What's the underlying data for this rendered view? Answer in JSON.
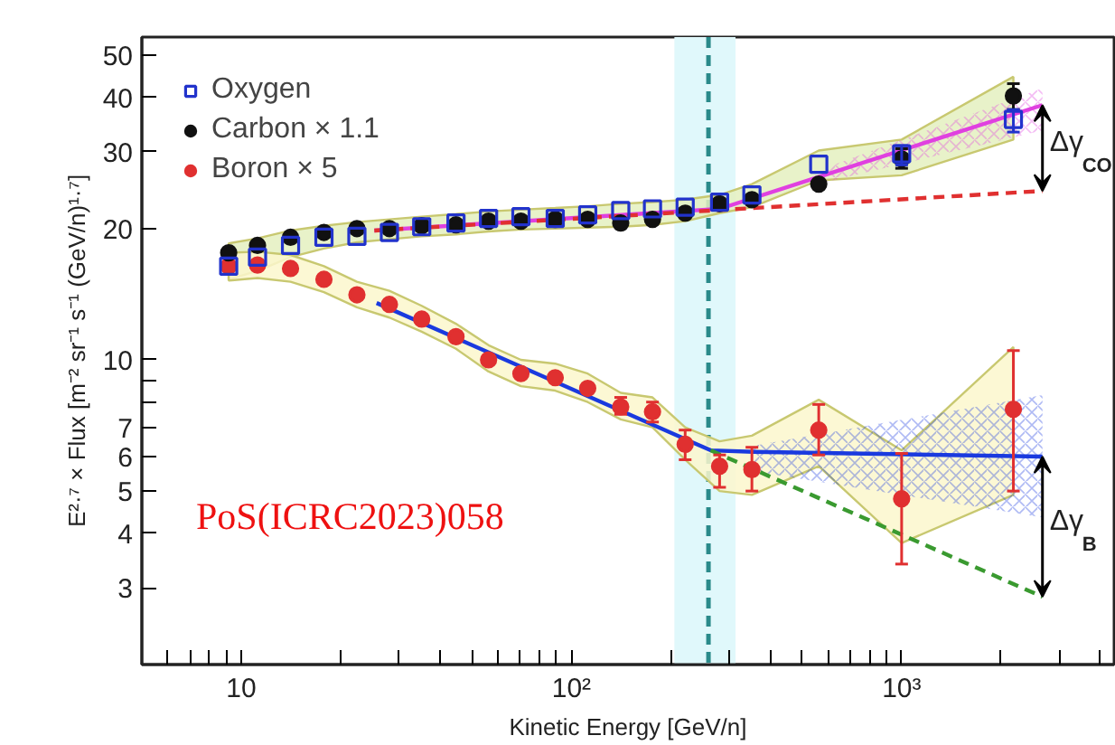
{
  "chart_data": {
    "type": "scatter",
    "xlabel": "Kinetic Energy [GeV/n]",
    "ylabel": "E²·⁷ × Flux [m⁻² sr⁻¹ s⁻¹ (GeV/n)¹·⁷]",
    "log": "xy",
    "legend": "top left",
    "xlim": [
      5,
      4400
    ],
    "ylim": [
      2,
      55
    ],
    "xticks": [
      {
        "value": 6,
        "label": null
      },
      {
        "value": 7,
        "label": null
      },
      {
        "value": 8,
        "label": null
      },
      {
        "value": 9,
        "label": null
      },
      10,
      {
        "value": 20,
        "label": null
      },
      {
        "value": 30,
        "label": null
      },
      {
        "value": 40,
        "label": null
      },
      {
        "value": 50,
        "label": null
      },
      {
        "value": 60,
        "label": null
      },
      {
        "value": 70,
        "label": null
      },
      {
        "value": 80,
        "label": null
      },
      {
        "value": 90,
        "label": null
      },
      {
        "value": 100,
        "label": "10²"
      },
      {
        "value": 200,
        "label": null
      },
      {
        "value": 300,
        "label": null
      },
      {
        "value": 400,
        "label": null
      },
      {
        "value": 500,
        "label": null
      },
      {
        "value": 600,
        "label": null
      },
      {
        "value": 700,
        "label": null
      },
      {
        "value": 800,
        "label": null
      },
      {
        "value": 900,
        "label": null
      },
      {
        "value": 1000,
        "label": "10³"
      },
      {
        "value": 2000,
        "label": null
      },
      {
        "value": 3000,
        "label": null
      },
      {
        "value": 4000,
        "label": null
      }
    ],
    "yticks": [
      3,
      4,
      5,
      6,
      7,
      {
        "value": 8,
        "label": null
      },
      {
        "value": 9,
        "label": null
      },
      10,
      20,
      30,
      40,
      50
    ],
    "x": [
      9.16,
      11.2,
      14.1,
      17.8,
      22.4,
      28.1,
      35.2,
      44.7,
      56.1,
      70.3,
      89.3,
      112,
      141,
      176,
      221,
      281,
      352,
      561,
      1000,
      2180
    ],
    "series": [
      {
        "name": "Oxygen",
        "marker": "square",
        "color": "#2233cc",
        "values": [
          16.4,
          17.2,
          18.3,
          19.1,
          19.2,
          19.6,
          20.2,
          20.6,
          21.1,
          21.3,
          21.1,
          21.5,
          22.0,
          22.2,
          22.4,
          23.0,
          23.9,
          28.1,
          29.7,
          35.6
        ],
        "errors": [
          null,
          null,
          null,
          null,
          null,
          null,
          null,
          null,
          null,
          null,
          null,
          null,
          null,
          null,
          null,
          null,
          null,
          null,
          [
            28,
            31
          ],
          [
            33.3,
            37.5
          ]
        ],
        "lower": [
          15.3,
          16.0,
          17.2,
          18.0,
          18.6,
          18.9,
          19.2,
          19.4,
          19.7,
          19.9,
          20.0,
          20.1,
          20.2,
          20.4,
          20.8,
          21.7,
          22.4,
          25.8,
          26.5,
          32
        ],
        "upper": [
          18.5,
          19.0,
          19.8,
          20.3,
          20.7,
          21.0,
          21.3,
          21.6,
          21.9,
          22.1,
          22.3,
          22.5,
          22.8,
          23.0,
          23.3,
          23.9,
          25.3,
          30.2,
          32,
          44.6
        ]
      },
      {
        "name": "Carbon × 1.1",
        "marker": "circle",
        "color": "#111111",
        "values": [
          17.6,
          18.3,
          19.1,
          19.6,
          20.0,
          20.0,
          20.3,
          20.4,
          20.8,
          20.8,
          21.0,
          21.0,
          20.6,
          21.0,
          21.7,
          22.8,
          23.3,
          25.3,
          28.9,
          40.3
        ],
        "errors": [
          null,
          null,
          null,
          null,
          null,
          null,
          null,
          null,
          null,
          null,
          null,
          null,
          null,
          null,
          null,
          null,
          null,
          null,
          [
            27.5,
            30.5
          ],
          [
            37.5,
            43
          ]
        ]
      },
      {
        "name": "Boron × 5",
        "marker": "circle",
        "color": "#e03030",
        "values": [
          16.4,
          16.5,
          16.2,
          15.3,
          14.1,
          13.4,
          12.4,
          11.3,
          10.0,
          9.3,
          9.1,
          8.6,
          7.8,
          7.6,
          6.4,
          5.7,
          5.6,
          6.9,
          4.8,
          7.7
        ],
        "errors": [
          null,
          null,
          null,
          null,
          null,
          null,
          null,
          null,
          null,
          null,
          null,
          null,
          [
            7.5,
            8.2
          ],
          [
            7.2,
            8.0
          ],
          [
            5.9,
            6.9
          ],
          [
            5.1,
            6.05
          ],
          [
            5.0,
            6.3
          ],
          [
            6.05,
            7.9
          ],
          [
            3.4,
            6.1
          ],
          [
            5.0,
            10.5
          ]
        ],
        "lower": [
          15.2,
          15.4,
          15.1,
          14.3,
          13.2,
          12.5,
          11.6,
          10.6,
          9.4,
          8.7,
          8.5,
          8.0,
          7.3,
          7.0,
          5.9,
          5.0,
          4.9,
          5.7,
          3.8,
          4.9
        ],
        "upper": [
          17.6,
          17.7,
          17.4,
          16.4,
          15.1,
          14.4,
          13.3,
          12.1,
          10.8,
          10.0,
          9.8,
          9.3,
          8.4,
          8.2,
          7.0,
          6.5,
          6.7,
          8.1,
          6.2,
          10.7
        ]
      },
      {
        "type": "line",
        "color": "#e040e0",
        "line_style": "solid",
        "x": [
          25.3,
          281,
          590,
          2670
        ],
        "values": [
          19.8,
          22.2,
          26.6,
          38.4
        ],
        "lower": [
          null,
          null,
          25.6,
          33.6
        ],
        "upper": [
          null,
          null,
          27.6,
          42
        ]
      },
      {
        "type": "line",
        "color": "#e03030",
        "line_style": "dashed",
        "x": [
          25.3,
          2670
        ],
        "values": [
          19.8,
          24.4
        ]
      },
      {
        "type": "line",
        "color": "#1a3adf",
        "line_style": "solid",
        "x": [
          25.7,
          264,
          356,
          2670
        ],
        "values": [
          13.5,
          6.2,
          6.15,
          6.0
        ],
        "lower": [
          null,
          null,
          5.55,
          4.35
        ],
        "upper": [
          null,
          null,
          6.35,
          8.3
        ]
      },
      {
        "type": "line",
        "color": "#3a9a30",
        "line_style": "dashed",
        "x": [
          264,
          2670
        ],
        "values": [
          6.2,
          2.86
        ]
      }
    ],
    "ref_lines": [
      {
        "axis": "x",
        "value": 260,
        "color": "#2a8a8a",
        "line_style": "dashed"
      }
    ],
    "bands": [
      {
        "axis": "x",
        "from": 205,
        "to": 314,
        "color": "#e0f8fb"
      }
    ],
    "annotations": [
      "Δγ$_{CO}$",
      "Δγ$_{B}$",
      "PoS(ICRC2023)058"
    ]
  }
}
